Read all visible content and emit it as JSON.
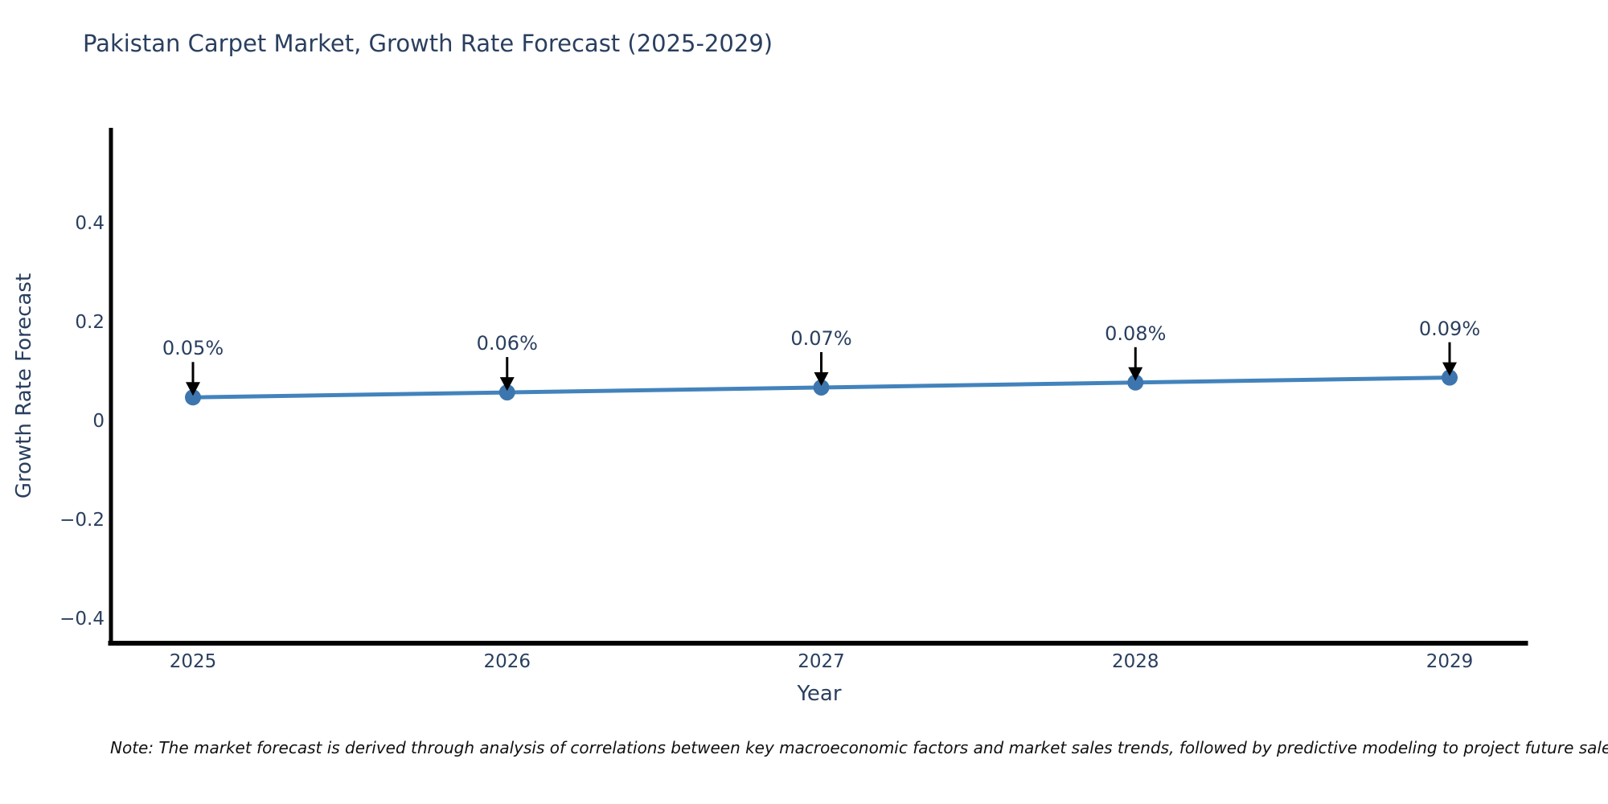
{
  "title": "Pakistan Carpet Market, Growth Rate Forecast (2025-2029)",
  "note": "Note: The market forecast is derived through analysis of correlations between key macroeconomic factors and market sales trends, followed by predictive modeling to project future sales.",
  "chart_data": {
    "type": "line",
    "title": "Pakistan Carpet Market, Growth Rate Forecast (2025-2029)",
    "xlabel": "Year",
    "ylabel": "Growth Rate Forecast",
    "x": [
      2025,
      2026,
      2027,
      2028,
      2029
    ],
    "values": [
      0.05,
      0.06,
      0.07,
      0.08,
      0.09
    ],
    "point_labels": [
      "0.05%",
      "0.06%",
      "0.07%",
      "0.08%",
      "0.09%"
    ],
    "xtick_labels": [
      "2025",
      "2026",
      "2027",
      "2028",
      "2029"
    ],
    "yticks": [
      0.4,
      0.2,
      0,
      -0.2,
      -0.4
    ],
    "ytick_labels": [
      "0.4",
      "0.2",
      "0",
      "−0.2",
      "−0.4"
    ],
    "ylim": [
      -0.45,
      0.6
    ],
    "grid": false,
    "legend": "none",
    "line_color": "#4383bc",
    "marker_color": "#3d76ae",
    "axis_color": "#000000",
    "annotation_arrow_color": "#000000",
    "text_color": "#2a3f5f"
  }
}
